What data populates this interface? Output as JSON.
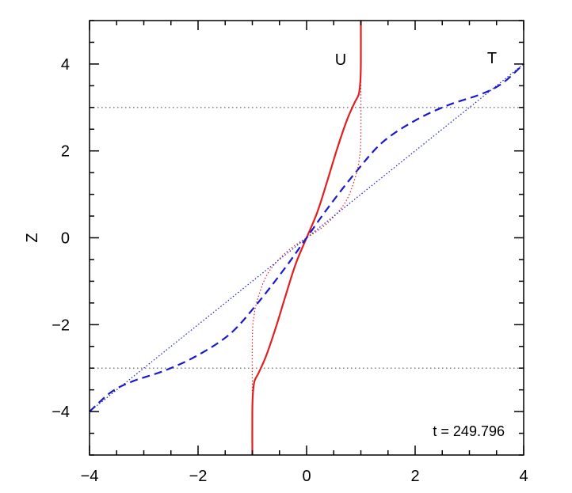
{
  "chart_data": {
    "type": "line",
    "title": "",
    "xlabel": "",
    "ylabel": "Z",
    "xlim": [
      -4,
      4
    ],
    "ylim": [
      -5,
      5
    ],
    "x_ticks": [
      -4,
      -2,
      0,
      2,
      4
    ],
    "y_ticks": [
      -4,
      -2,
      0,
      2,
      4
    ],
    "x_tick_labels": [
      "−4",
      "−2",
      "0",
      "2",
      "4"
    ],
    "y_tick_labels": [
      "−4",
      "−2",
      "0",
      "2",
      "4"
    ],
    "grid": false,
    "reference_lines": [
      {
        "orientation": "horizontal",
        "y": 3,
        "style": "dotted",
        "color": "#7f7f7f"
      },
      {
        "orientation": "horizontal",
        "y": -3,
        "style": "dotted",
        "color": "#7f7f7f"
      }
    ],
    "annotation": "t = 249.796",
    "series": [
      {
        "name": "U",
        "style": "solid",
        "color": "#e02020",
        "x": [
          -1.0,
          -1.0,
          -0.99,
          -0.96,
          -0.88,
          -0.74,
          -0.55,
          -0.38,
          -0.2,
          0.0,
          0.2,
          0.38,
          0.55,
          0.74,
          0.88,
          0.96,
          0.99,
          1.0,
          1.0
        ],
        "y": [
          -5.0,
          -4.0,
          -3.6,
          -3.3,
          -3.1,
          -2.7,
          -2.0,
          -1.3,
          -0.6,
          0.0,
          0.6,
          1.3,
          2.0,
          2.7,
          3.1,
          3.3,
          3.6,
          4.0,
          5.0
        ]
      },
      {
        "name": "T",
        "style": "dashed",
        "color": "#1a1acc",
        "x": [
          -4.0,
          -3.6,
          -3.2,
          -2.6,
          -2.0,
          -1.4,
          -0.9,
          -0.4,
          0.0,
          0.4,
          0.9,
          1.4,
          2.0,
          2.6,
          3.2,
          3.6,
          4.0
        ],
        "y": [
          -4.0,
          -3.55,
          -3.3,
          -3.05,
          -2.7,
          -2.2,
          -1.5,
          -0.7,
          0.0,
          0.7,
          1.5,
          2.2,
          2.7,
          3.05,
          3.3,
          3.55,
          4.0
        ]
      },
      {
        "style": "dotted",
        "color": "#e02020",
        "x": [
          -1.0,
          -1.0,
          -0.97,
          -0.9,
          -0.75,
          -0.55,
          -0.3,
          0.0,
          0.3,
          0.55,
          0.75,
          0.9,
          0.97,
          1.0,
          1.0
        ],
        "y": [
          -3.6,
          -2.3,
          -1.8,
          -1.4,
          -0.9,
          -0.55,
          -0.25,
          0.0,
          0.25,
          0.55,
          0.9,
          1.4,
          1.8,
          2.3,
          3.6
        ]
      },
      {
        "style": "dotted",
        "color": "#1a1acc",
        "x": [
          -4.0,
          4.0
        ],
        "y": [
          -4.0,
          4.0
        ]
      }
    ]
  }
}
